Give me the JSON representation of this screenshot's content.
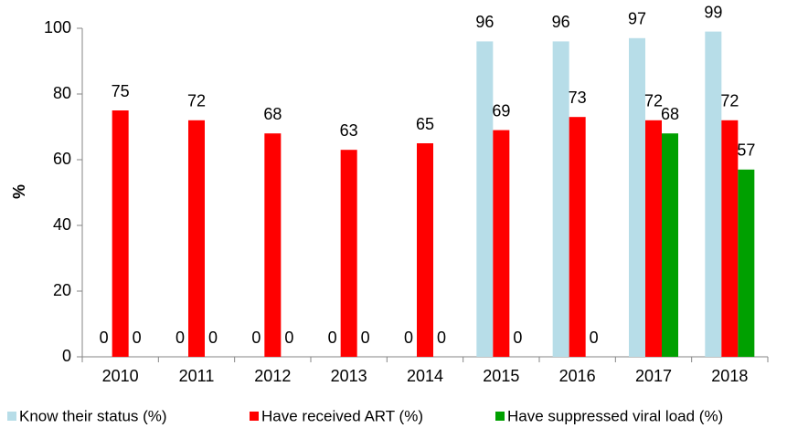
{
  "chart_data": {
    "type": "bar",
    "ylabel": "%",
    "categories": [
      "2010",
      "2011",
      "2012",
      "2013",
      "2014",
      "2015",
      "2016",
      "2017",
      "2018"
    ],
    "series": [
      {
        "name": "Know their status (%)",
        "color": "#b7dde8",
        "values": [
          0,
          0,
          0,
          0,
          0,
          96,
          96,
          97,
          99
        ]
      },
      {
        "name": "Have received ART (%)",
        "color": "#ff0000",
        "values": [
          75,
          72,
          68,
          63,
          65,
          69,
          73,
          72,
          72
        ]
      },
      {
        "name": "Have suppressed viral load (%)",
        "color": "#00a000",
        "values": [
          0,
          0,
          0,
          0,
          0,
          0,
          0,
          68,
          57
        ]
      }
    ],
    "ylim": [
      0,
      100
    ],
    "yticks": [
      0,
      20,
      40,
      60,
      80,
      100
    ],
    "grid": false,
    "legend": "bottom"
  }
}
